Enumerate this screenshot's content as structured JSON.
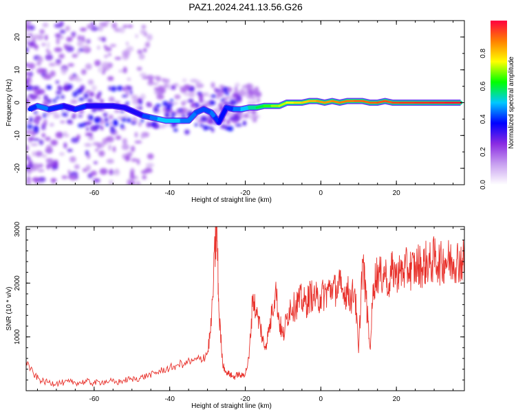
{
  "title": "PAZ1.2024.241.13.56.G26",
  "chart_data": [
    {
      "type": "heatmap",
      "xlabel": "Height of straight line (km)",
      "ylabel": "Frequency (Hz)",
      "xlim": [
        -78,
        38
      ],
      "ylim": [
        -25,
        25
      ],
      "x_ticks": [
        -60,
        -40,
        -20,
        0,
        20
      ],
      "y_ticks": [
        -20,
        -10,
        0,
        10,
        20
      ],
      "colorbar": {
        "label": "Normalized spectral amplitude",
        "range": [
          0,
          1
        ],
        "ticks": [
          "0.0",
          "0.2",
          "0.4",
          "0.6",
          "0.8"
        ],
        "colors": [
          "#ffffff",
          "#c8a0f0",
          "#8a2be2",
          "#0000ff",
          "#00c8ff",
          "#00ff00",
          "#ffff00",
          "#ff8000",
          "#ff0040"
        ]
      },
      "ridge": [
        [
          -77,
          -2,
          0.4
        ],
        [
          -75,
          -1,
          0.45
        ],
        [
          -72,
          -2,
          0.4
        ],
        [
          -68,
          -1,
          0.35
        ],
        [
          -65,
          -2,
          0.4
        ],
        [
          -62,
          -1,
          0.35
        ],
        [
          -58,
          -1,
          0.35
        ],
        [
          -55,
          -1,
          0.35
        ],
        [
          -52,
          -1.5,
          0.35
        ],
        [
          -49,
          -3,
          0.35
        ],
        [
          -47,
          -4,
          0.42
        ],
        [
          -45,
          -4.5,
          0.45
        ],
        [
          -43,
          -5,
          0.5
        ],
        [
          -41,
          -5.5,
          0.5
        ],
        [
          -39,
          -5.5,
          0.5
        ],
        [
          -37,
          -5.5,
          0.45
        ],
        [
          -35,
          -5.5,
          0.45
        ],
        [
          -33,
          -3,
          0.42
        ],
        [
          -31,
          -2,
          0.42
        ],
        [
          -29,
          -3,
          0.45
        ],
        [
          -28,
          -4.5,
          0.4
        ],
        [
          -27,
          -6,
          0.38
        ],
        [
          -25,
          -1.5,
          0.4
        ],
        [
          -23,
          -2,
          0.45
        ],
        [
          -21,
          -2,
          0.5
        ],
        [
          -19,
          -1.5,
          0.55
        ],
        [
          -17,
          -1.5,
          0.6
        ],
        [
          -15,
          -1,
          0.65
        ],
        [
          -13,
          -1,
          0.7
        ],
        [
          -11,
          -1,
          0.72
        ],
        [
          -9,
          0,
          0.75
        ],
        [
          -7,
          0,
          0.78
        ],
        [
          -5,
          0,
          0.8
        ],
        [
          -3,
          0.5,
          0.82
        ],
        [
          -1,
          0.5,
          0.85
        ],
        [
          1,
          0,
          0.85
        ],
        [
          3,
          0.5,
          0.87
        ],
        [
          5,
          0,
          0.88
        ],
        [
          7,
          0.5,
          0.88
        ],
        [
          9,
          0.5,
          0.9
        ],
        [
          11,
          0.5,
          0.9
        ],
        [
          13,
          0,
          0.9
        ],
        [
          15,
          0,
          0.92
        ],
        [
          17,
          0.5,
          0.92
        ],
        [
          19,
          0,
          0.93
        ],
        [
          21,
          0,
          0.94
        ],
        [
          23,
          0,
          0.94
        ],
        [
          25,
          0,
          0.95
        ],
        [
          27,
          0,
          0.95
        ],
        [
          29,
          0,
          0.96
        ],
        [
          31,
          0,
          0.96
        ],
        [
          33,
          0,
          0.97
        ],
        [
          35,
          0,
          0.97
        ],
        [
          37,
          0,
          0.97
        ]
      ]
    },
    {
      "type": "line",
      "xlabel": "Height of straight line (km)",
      "ylabel": "SNR (10 * v/v)",
      "xlim": [
        -78,
        38
      ],
      "ylim": [
        0,
        3050
      ],
      "x_ticks": [
        -60,
        -40,
        -20,
        0,
        20
      ],
      "y_ticks": [
        1000,
        2000,
        3000
      ],
      "series": [
        {
          "color": "#e8302a",
          "x": [
            -78,
            -76,
            -74,
            -72,
            -70,
            -68,
            -66,
            -64,
            -62,
            -60,
            -58,
            -56,
            -54,
            -52,
            -50,
            -48,
            -46,
            -44,
            -42,
            -40,
            -38,
            -36,
            -34,
            -32,
            -30,
            -29,
            -28,
            -27.5,
            -27,
            -26,
            -25,
            -24,
            -23,
            -22,
            -21,
            -20,
            -19,
            -18,
            -17,
            -16,
            -15,
            -14,
            -13,
            -12,
            -11,
            -10,
            -9,
            -8,
            -7,
            -6,
            -5,
            -4,
            -3,
            -2,
            -1,
            0,
            1,
            2,
            3,
            4,
            5,
            6,
            7,
            8,
            9,
            10,
            11,
            12,
            13,
            14,
            15,
            16,
            17,
            18,
            19,
            20,
            21,
            22,
            23,
            24,
            25,
            26,
            27,
            28,
            29,
            30,
            31,
            32,
            33,
            34,
            35,
            36,
            37,
            38
          ],
          "y": [
            550,
            300,
            180,
            150,
            140,
            150,
            160,
            150,
            170,
            140,
            160,
            180,
            150,
            200,
            220,
            230,
            280,
            320,
            380,
            420,
            480,
            520,
            550,
            580,
            700,
            1200,
            2600,
            3050,
            1500,
            500,
            350,
            300,
            250,
            300,
            280,
            320,
            600,
            1750,
            1400,
            1200,
            800,
            1000,
            1400,
            1900,
            1300,
            1000,
            1350,
            1600,
            1550,
            1650,
            1700,
            1600,
            1750,
            1800,
            1700,
            1750,
            1800,
            1850,
            1900,
            1850,
            1950,
            1800,
            1850,
            1700,
            1900,
            700,
            2450,
            1700,
            800,
            2000,
            2200,
            2100,
            2200,
            2000,
            2250,
            2200,
            2250,
            2200,
            2300,
            2250,
            2300,
            2350,
            2300,
            2400,
            2350,
            2450,
            2400,
            2350,
            2450,
            2400,
            2400,
            2450,
            2400,
            2420
          ]
        }
      ]
    }
  ]
}
